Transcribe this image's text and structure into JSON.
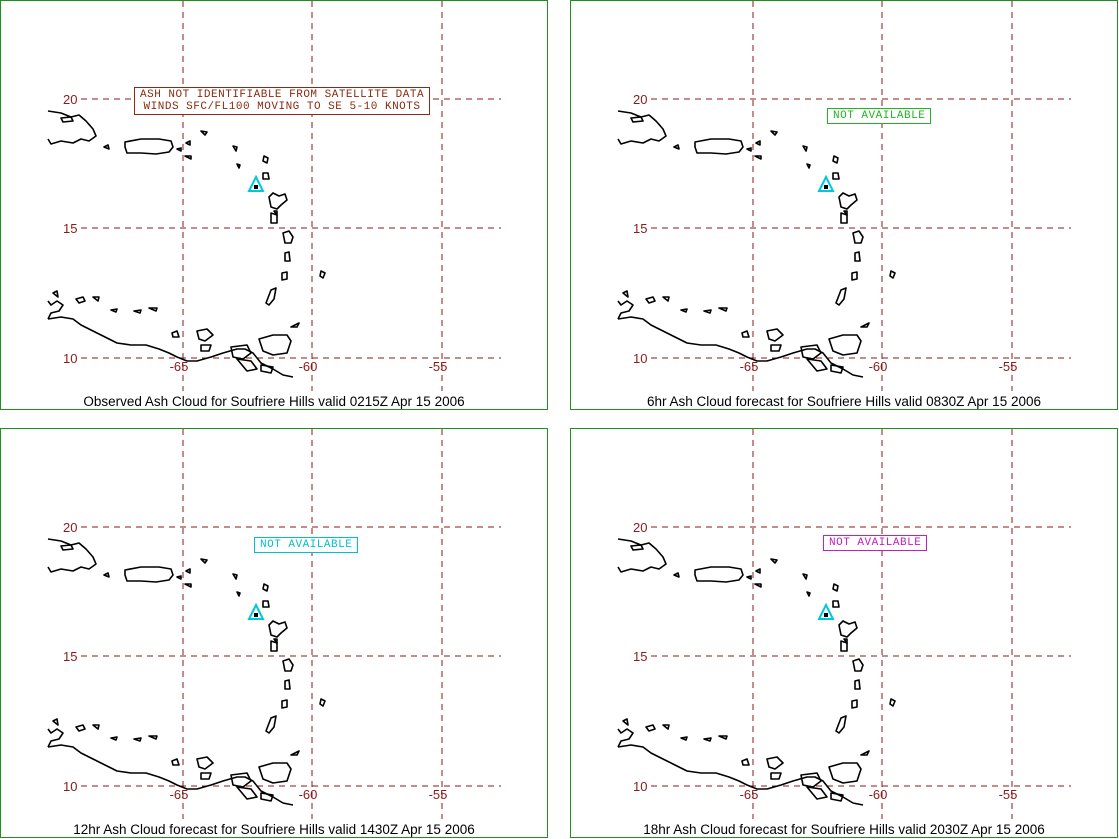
{
  "colors": {
    "grid": "#8b1a1a",
    "frame": "#1f8f1f",
    "coast": "#000000",
    "volcano": "#00c8d8"
  },
  "axis_labels": {
    "lat": [
      "20",
      "15",
      "10"
    ],
    "lon": [
      "-65",
      "-60",
      "-55"
    ]
  },
  "volcano": {
    "name": "Soufriere Hills",
    "icon": "triangle-volcano-icon"
  },
  "panels": [
    {
      "caption": "Observed Ash Cloud for Soufriere  Hills valid 0215Z Apr 15 2006",
      "note_lines": [
        "ASH NOT IDENTIFIABLE FROM SATELLITE DATA",
        "WINDS SFC/FL100 MOVING TO SE 5-10 KNOTS"
      ],
      "note_color": "#8b2a10"
    },
    {
      "caption": "6hr Ash Cloud forecast for Soufriere  Hills valid 0830Z Apr 15 2006",
      "note_lines": [
        "NOT AVAILABLE"
      ],
      "note_color": "#22b522"
    },
    {
      "caption": "12hr Ash Cloud forecast for Soufriere  Hills valid 1430Z Apr 15 2006",
      "note_lines": [
        "NOT AVAILABLE"
      ],
      "note_color": "#00c0d0"
    },
    {
      "caption": "18hr Ash Cloud forecast for Soufriere  Hills valid 2030Z Apr 15 2006",
      "note_lines": [
        "NOT AVAILABLE"
      ],
      "note_color": "#c020c0"
    }
  ]
}
